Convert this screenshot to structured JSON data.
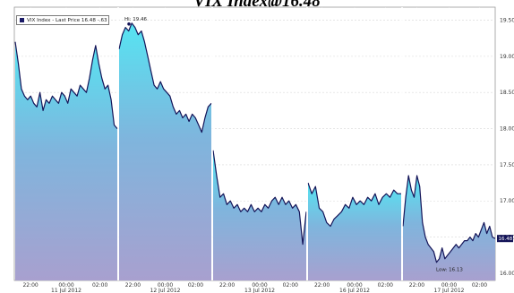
{
  "title": "VIX Index@16.48",
  "legend_label": "VIX Index - Last Price 16.48  -.63",
  "chart_data": {
    "type": "area",
    "y_ticks": [
      16.0,
      16.5,
      17.0,
      17.5,
      18.0,
      18.5,
      19.0,
      19.5
    ],
    "ylim": [
      15.9,
      19.68
    ],
    "time_labels": [
      "22:00",
      "00:00",
      "02:00",
      "22:00",
      "00:00",
      "02:00",
      "22:00",
      "00:00",
      "02:00",
      "22:00",
      "00:00",
      "02:00",
      "22:00",
      "00:00",
      "02:00"
    ],
    "day_labels": [
      "11 Jul 2012",
      "12 Jul 2012",
      "13 Jul 2012",
      "16 Jul 2012",
      "17 Jul 2012"
    ],
    "annotations": {
      "high": {
        "label": "Hi: 19.46",
        "value": 19.46
      },
      "low": {
        "label": "Low: 16.13",
        "value": 16.13
      },
      "last": {
        "label": "16.48",
        "value": 16.48
      }
    },
    "segments": [
      {
        "values": [
          19.2,
          18.9,
          18.55,
          18.45,
          18.4,
          18.45,
          18.35,
          18.3,
          18.5,
          18.25,
          18.4,
          18.35,
          18.45,
          18.4,
          18.35,
          18.5,
          18.45,
          18.35,
          18.55,
          18.5,
          18.45,
          18.6,
          18.55,
          18.5,
          18.7,
          18.95,
          19.15,
          18.9,
          18.7,
          18.55,
          18.6,
          18.4,
          18.05,
          18.0
        ]
      },
      {
        "values": [
          19.1,
          19.3,
          19.4,
          19.35,
          19.46,
          19.4,
          19.3,
          19.35,
          19.2,
          19.0,
          18.8,
          18.6,
          18.55,
          18.65,
          18.55,
          18.5,
          18.45,
          18.3,
          18.2,
          18.25,
          18.15,
          18.2,
          18.1,
          18.2,
          18.15,
          18.05,
          17.95,
          18.15,
          18.3,
          18.35
        ]
      },
      {
        "values": [
          17.7,
          17.35,
          17.05,
          17.1,
          16.95,
          17.0,
          16.9,
          16.95,
          16.85,
          16.9,
          16.85,
          16.95,
          16.85,
          16.9,
          16.85,
          16.95,
          16.9,
          17.0,
          17.05,
          16.95,
          17.05,
          16.95,
          17.0,
          16.9,
          16.95,
          16.85,
          16.4,
          16.85
        ]
      },
      {
        "values": [
          17.25,
          17.1,
          17.2,
          16.9,
          16.85,
          16.7,
          16.65,
          16.75,
          16.8,
          16.85,
          16.95,
          16.9,
          17.05,
          16.95,
          17.0,
          16.95,
          17.05,
          17.0,
          17.1,
          16.95,
          17.05,
          17.1,
          17.05,
          17.15,
          17.1,
          17.1
        ]
      },
      {
        "values": [
          16.65,
          17.05,
          17.35,
          17.15,
          17.05,
          17.35,
          17.2,
          16.7,
          16.5,
          16.4,
          16.35,
          16.3,
          16.15,
          16.2,
          16.35,
          16.2,
          16.25,
          16.3,
          16.35,
          16.4,
          16.35,
          16.4,
          16.45,
          16.45,
          16.5,
          16.45,
          16.55,
          16.5,
          16.6,
          16.7,
          16.55,
          16.65,
          16.5,
          16.48
        ]
      }
    ]
  }
}
